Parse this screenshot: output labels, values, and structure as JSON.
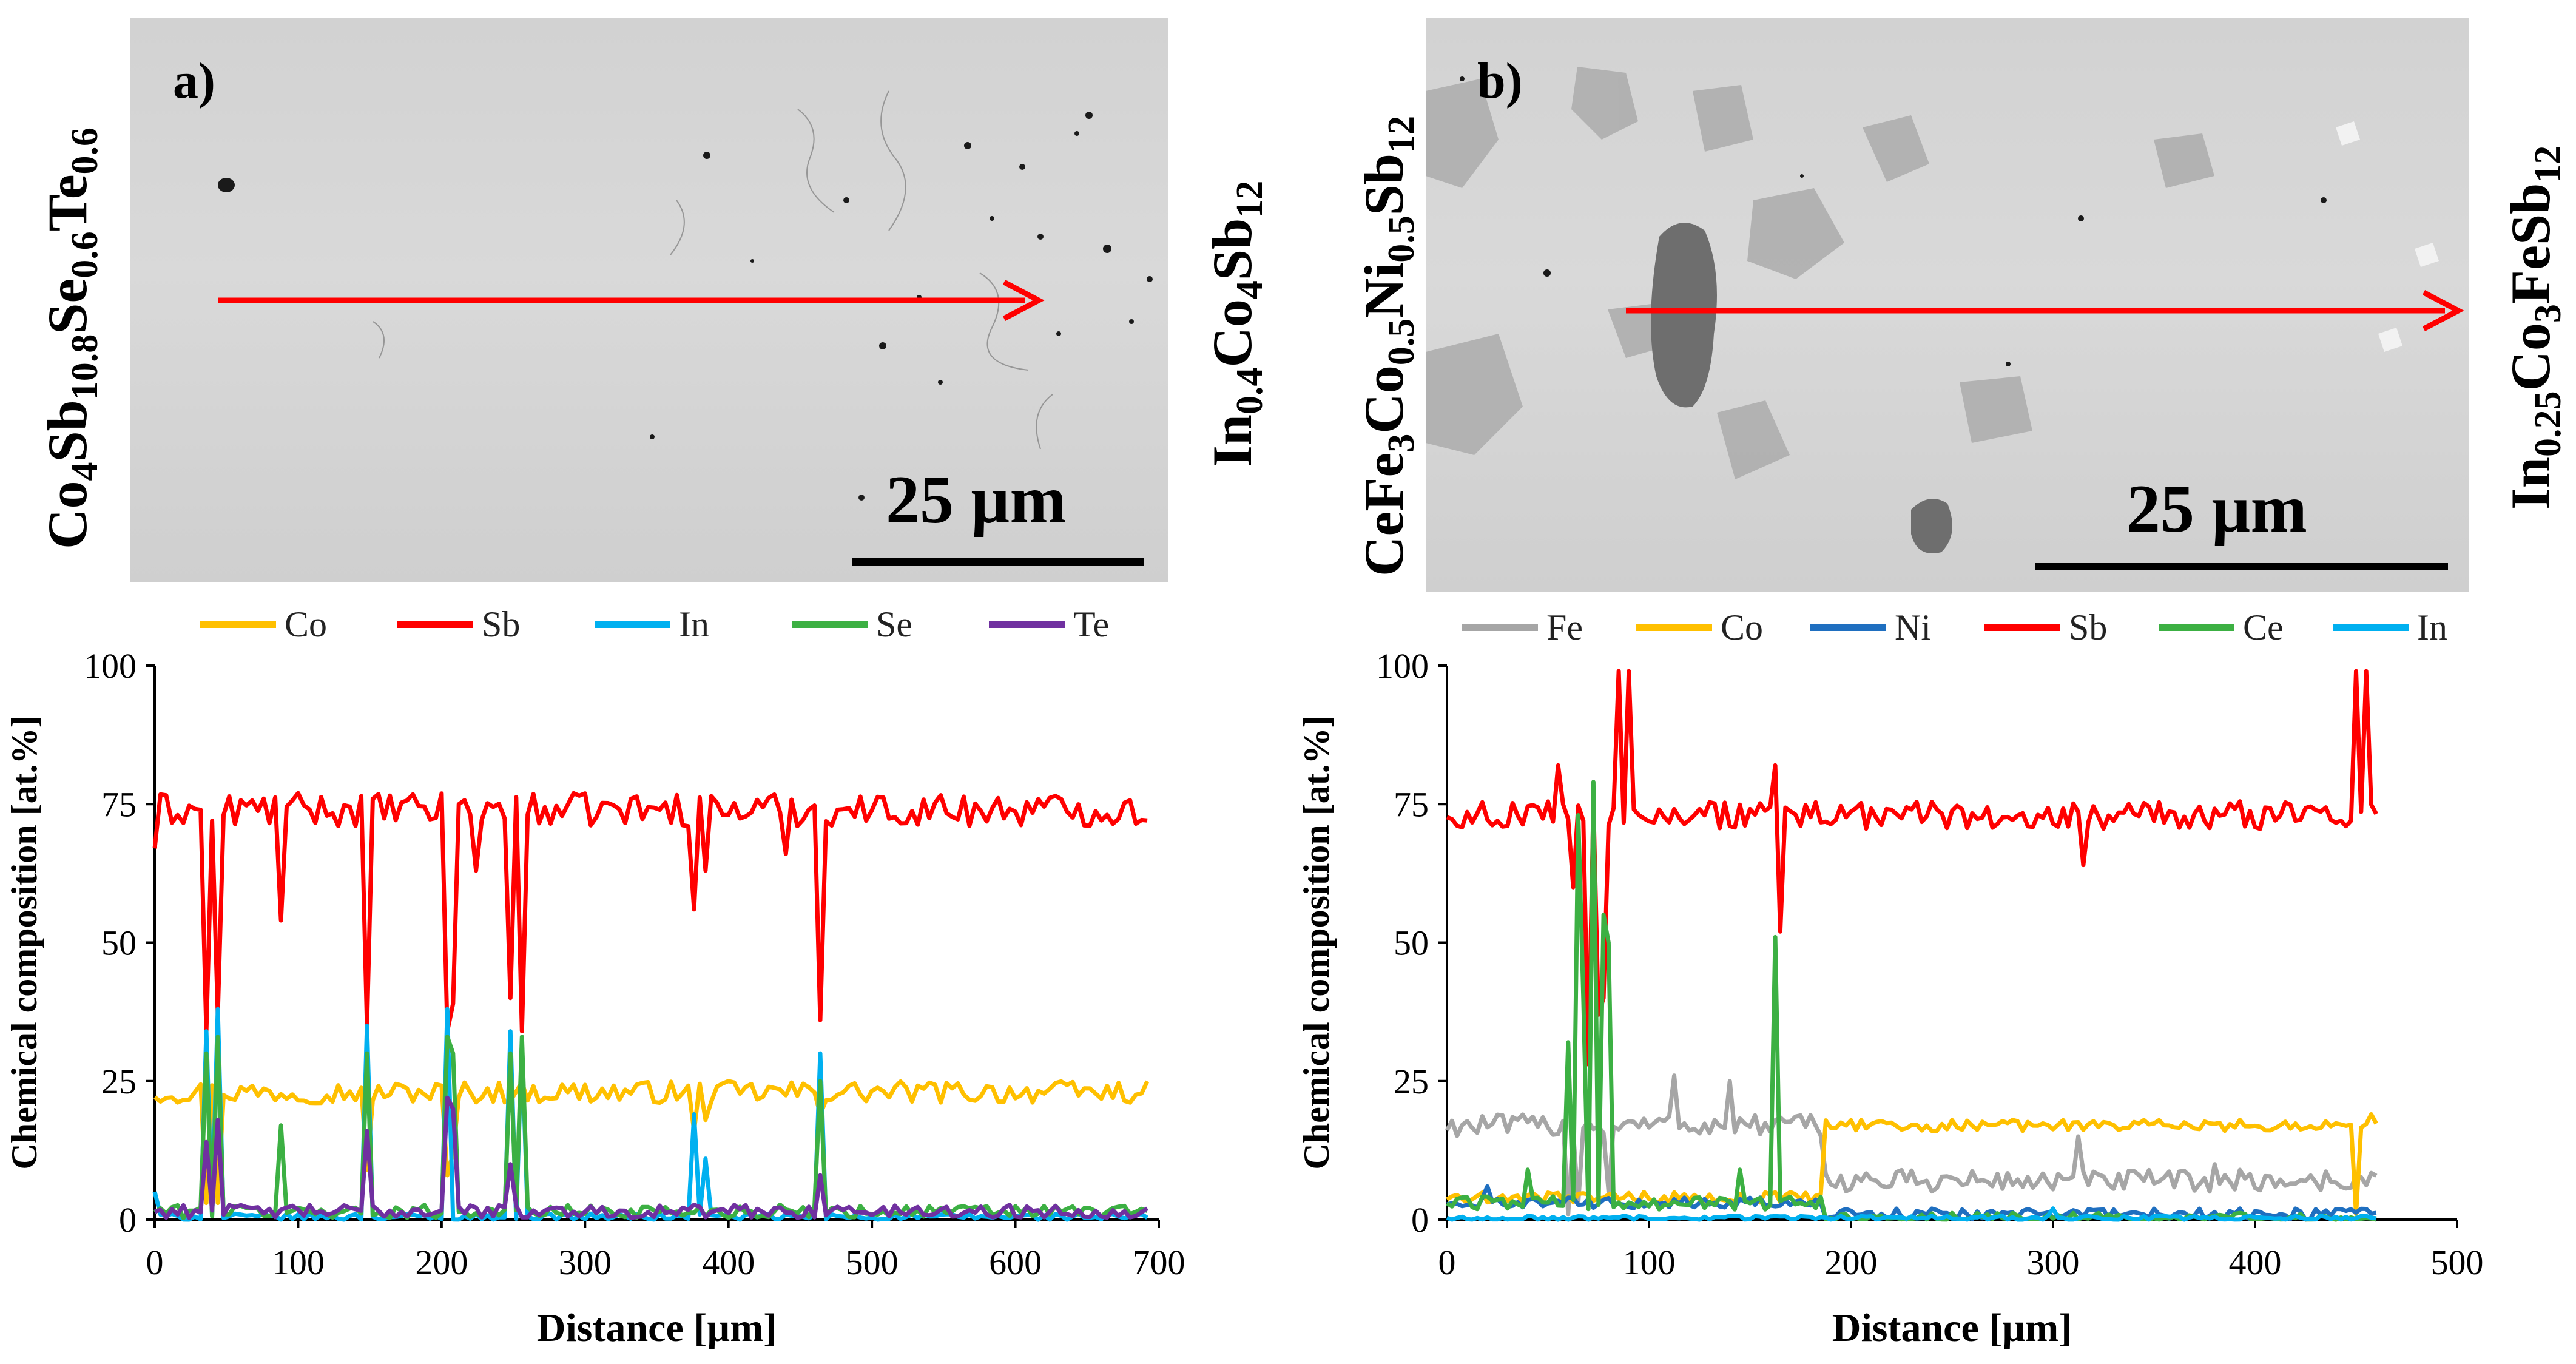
{
  "panels": [
    {
      "label": "a)",
      "scale_text": "25 µm",
      "left_formula": [
        {
          "t": "Co"
        },
        {
          "t": "4",
          "sub": true
        },
        {
          "t": "Sb"
        },
        {
          "t": "10.8",
          "sub": true
        },
        {
          "t": "Se"
        },
        {
          "t": "0.6",
          "sub": true
        },
        {
          "t": "Te"
        },
        {
          "t": "0.6",
          "sub": true
        }
      ],
      "right_formula": [
        {
          "t": "In"
        },
        {
          "t": "0.4",
          "sub": true
        },
        {
          "t": "Co"
        },
        {
          "t": "4",
          "sub": true
        },
        {
          "t": "Sb"
        },
        {
          "t": "12",
          "sub": true
        }
      ]
    },
    {
      "label": "b)",
      "scale_text": "25 µm",
      "left_formula": [
        {
          "t": "CeFe"
        },
        {
          "t": "3",
          "sub": true
        },
        {
          "t": "Co"
        },
        {
          "t": "0.5",
          "sub": true
        },
        {
          "t": "Ni"
        },
        {
          "t": "0.5",
          "sub": true
        },
        {
          "t": "Sb"
        },
        {
          "t": "12",
          "sub": true
        }
      ],
      "right_formula": [
        {
          "t": "In"
        },
        {
          "t": "0.25",
          "sub": true
        },
        {
          "t": "Co"
        },
        {
          "t": "3",
          "sub": true
        },
        {
          "t": "FeSb"
        },
        {
          "t": "12",
          "sub": true
        }
      ]
    }
  ],
  "colors": {
    "Co": "#FFC000",
    "Sb": "#FF0000",
    "In": "#00B0F0",
    "Se": "#3CB043",
    "Te": "#7030A0",
    "Fe": "#A6A6A6",
    "Ni": "#1F6FC0",
    "Ce": "#3CB043",
    "arrow": "#FF0000"
  },
  "chart_data": [
    {
      "type": "line",
      "title": "",
      "xlabel": "Distance [µm]",
      "ylabel": "Chemical composition [at.%]",
      "xlim": [
        0,
        700
      ],
      "ylim": [
        0,
        100
      ],
      "xticks": [
        0,
        100,
        200,
        300,
        400,
        500,
        600,
        700
      ],
      "yticks": [
        0,
        25,
        50,
        75,
        100
      ],
      "x_end": 695,
      "grid": false,
      "legend_position": "top",
      "series": [
        {
          "name": "Co",
          "baseline": 23,
          "noise": 2,
          "hi": 26,
          "spikes": [
            [
              36,
              3
            ],
            [
              45,
              3
            ],
            [
              150,
              9
            ],
            [
              205,
              8
            ],
            [
              210,
              12
            ],
            [
              375,
              16
            ],
            [
              383,
              18
            ],
            [
              465,
              19
            ]
          ]
        },
        {
          "name": "Sb",
          "baseline": 74,
          "noise": 3,
          "hi": 78,
          "spikes": [
            [
              0,
              67
            ],
            [
              36,
              34
            ],
            [
              41,
              72
            ],
            [
              45,
              37
            ],
            [
              88,
              54
            ],
            [
              150,
              35
            ],
            [
              205,
              34
            ],
            [
              210,
              39
            ],
            [
              225,
              63
            ],
            [
              248,
              40
            ],
            [
              255,
              34
            ],
            [
              375,
              56
            ],
            [
              383,
              63
            ],
            [
              440,
              66
            ],
            [
              465,
              36
            ]
          ]
        },
        {
          "name": "In",
          "baseline": 0.5,
          "noise": 0.6,
          "hi": 1,
          "spikes": [
            [
              0,
              5
            ],
            [
              36,
              34
            ],
            [
              45,
              38
            ],
            [
              150,
              35
            ],
            [
              205,
              38
            ],
            [
              248,
              34
            ],
            [
              255,
              32
            ],
            [
              375,
              19
            ],
            [
              383,
              11
            ],
            [
              465,
              30
            ]
          ]
        },
        {
          "name": "Se",
          "baseline": 1.5,
          "noise": 1.2,
          "hi": 2,
          "spikes": [
            [
              36,
              30
            ],
            [
              45,
              33
            ],
            [
              88,
              17
            ],
            [
              150,
              30
            ],
            [
              205,
              33
            ],
            [
              210,
              30
            ],
            [
              248,
              30
            ],
            [
              258,
              33
            ],
            [
              465,
              25
            ]
          ]
        },
        {
          "name": "Te",
          "baseline": 1.5,
          "noise": 1.2,
          "hi": 2,
          "spikes": [
            [
              36,
              14
            ],
            [
              45,
              18
            ],
            [
              150,
              16
            ],
            [
              205,
              22
            ],
            [
              210,
              20
            ],
            [
              248,
              10
            ],
            [
              465,
              8
            ]
          ]
        }
      ]
    },
    {
      "type": "line",
      "title": "",
      "xlabel": "Distance [µm]",
      "ylabel": "Chemical composition [at.%]",
      "xlim": [
        0,
        500
      ],
      "ylim": [
        0,
        100
      ],
      "xticks": [
        0,
        100,
        200,
        300,
        400,
        500
      ],
      "yticks": [
        0,
        25,
        50,
        75,
        100
      ],
      "x_end": 460,
      "grid": false,
      "legend_position": "top",
      "series": [
        {
          "name": "Fe",
          "baseline": 17,
          "noise": 2,
          "hi": 25,
          "x_from": 0,
          "x_to": 185,
          "after": 7,
          "spikes": [
            [
              60,
              1
            ],
            [
              65,
              3
            ],
            [
              80,
              5
            ],
            [
              113,
              26
            ],
            [
              140,
              25
            ],
            [
              312,
              15
            ],
            [
              380,
              10
            ]
          ]
        },
        {
          "name": "Co",
          "baseline": 4,
          "noise": 1,
          "hi": 5,
          "x_from": 0,
          "x_to": 185,
          "after": 17,
          "spikes": [
            [
              450,
              1
            ],
            [
              457,
              19
            ]
          ]
        },
        {
          "name": "Ni",
          "baseline": 3,
          "noise": 1,
          "hi": 5,
          "x_from": 0,
          "x_to": 185,
          "after": 1,
          "spikes": [
            [
              20,
              6
            ]
          ]
        },
        {
          "name": "Sb",
          "baseline": 73,
          "noise": 2.5,
          "hi": 78,
          "spikes": [
            [
              55,
              82
            ],
            [
              62,
              60
            ],
            [
              67,
              72
            ],
            [
              70,
              28
            ],
            [
              74,
              37
            ],
            [
              78,
              40
            ],
            [
              85,
              99
            ],
            [
              90,
              99
            ],
            [
              162,
              82
            ],
            [
              164,
              52
            ],
            [
              314,
              64
            ],
            [
              450,
              99
            ],
            [
              455,
              99
            ]
          ]
        },
        {
          "name": "Ce",
          "baseline": 3,
          "noise": 1.2,
          "hi": 4,
          "x_from": 0,
          "x_to": 185,
          "after": 0,
          "spikes": [
            [
              40,
              9
            ],
            [
              60,
              32
            ],
            [
              65,
              73
            ],
            [
              68,
              40
            ],
            [
              72,
              79
            ],
            [
              77,
              55
            ],
            [
              80,
              50
            ],
            [
              145,
              9
            ],
            [
              163,
              51
            ]
          ]
        },
        {
          "name": "In",
          "baseline": 0.3,
          "noise": 0.4,
          "hi": 1,
          "spikes": [
            [
              300,
              2
            ]
          ]
        }
      ]
    }
  ]
}
